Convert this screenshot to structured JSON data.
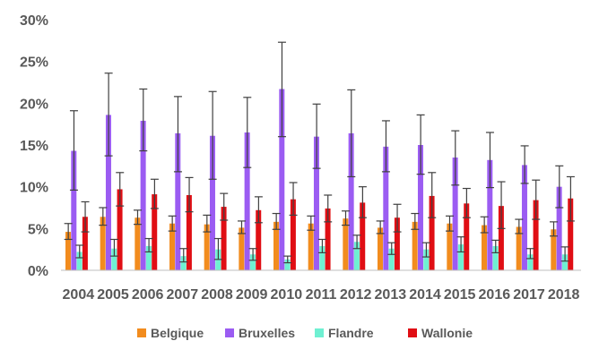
{
  "chart_data": {
    "type": "bar",
    "categories": [
      "2004",
      "2005",
      "2006",
      "2007",
      "2008",
      "2009",
      "2010",
      "2011",
      "2012",
      "2013",
      "2014",
      "2015",
      "2016",
      "2017",
      "2018"
    ],
    "ylim": [
      0,
      30
    ],
    "yticks": [
      "0%",
      "5%",
      "10%",
      "15%",
      "20%",
      "25%",
      "30%"
    ],
    "ytick_values": [
      0,
      5,
      10,
      15,
      20,
      25,
      30
    ],
    "grid": false,
    "legend_position": "bottom",
    "error_bars": true,
    "series": [
      {
        "name": "Belgique",
        "color": "#F28C1E",
        "values": [
          4.6,
          6.4,
          6.3,
          5.6,
          5.5,
          5.1,
          5.8,
          5.6,
          6.2,
          5.1,
          5.8,
          5.6,
          5.4,
          5.2,
          4.9
        ],
        "err_low": [
          3.7,
          5.4,
          5.5,
          4.7,
          4.6,
          4.4,
          4.9,
          4.8,
          5.4,
          4.4,
          4.9,
          4.7,
          4.5,
          4.4,
          4.1
        ],
        "err_high": [
          5.6,
          7.5,
          7.2,
          6.5,
          6.6,
          5.9,
          6.8,
          6.5,
          7.1,
          5.9,
          6.8,
          6.5,
          6.4,
          6.1,
          5.8
        ]
      },
      {
        "name": "Bruxelles",
        "color": "#9B5CF2",
        "values": [
          14.3,
          18.6,
          17.9,
          16.4,
          16.1,
          16.5,
          21.7,
          16.0,
          16.4,
          14.8,
          15.0,
          13.5,
          13.2,
          12.6,
          10.0
        ],
        "err_low": [
          9.6,
          13.7,
          14.3,
          11.8,
          10.9,
          12.3,
          16.0,
          12.2,
          11.2,
          11.8,
          11.5,
          10.2,
          9.9,
          10.4,
          7.5
        ],
        "err_high": [
          19.1,
          23.6,
          21.7,
          20.8,
          21.4,
          20.7,
          27.3,
          19.9,
          21.6,
          17.9,
          18.6,
          16.7,
          16.5,
          14.9,
          12.5
        ]
      },
      {
        "name": "Flandre",
        "color": "#6FF0D2",
        "values": [
          2.2,
          2.6,
          2.9,
          1.7,
          2.5,
          1.9,
          1.3,
          2.9,
          3.4,
          2.6,
          2.5,
          3.1,
          2.9,
          1.9,
          1.9
        ],
        "err_low": [
          1.5,
          1.7,
          2.2,
          1.0,
          1.3,
          1.2,
          0.9,
          2.1,
          2.6,
          1.9,
          1.6,
          2.2,
          2.1,
          1.4,
          1.1
        ],
        "err_high": [
          3.0,
          3.7,
          3.8,
          2.6,
          3.8,
          2.6,
          1.7,
          3.7,
          4.2,
          3.3,
          3.3,
          4.0,
          3.6,
          2.6,
          2.8
        ]
      },
      {
        "name": "Wallonie",
        "color": "#E00E14",
        "values": [
          6.4,
          9.7,
          9.1,
          9.0,
          7.6,
          7.2,
          8.5,
          7.4,
          8.1,
          6.3,
          8.9,
          8.0,
          7.7,
          8.4,
          8.6
        ],
        "err_low": [
          4.6,
          7.7,
          7.4,
          7.0,
          6.0,
          5.7,
          6.6,
          5.8,
          6.3,
          4.6,
          6.3,
          6.3,
          5.0,
          6.1,
          5.9
        ],
        "err_high": [
          8.2,
          11.7,
          10.9,
          11.1,
          9.2,
          8.8,
          10.5,
          9.0,
          10.0,
          7.9,
          11.7,
          9.8,
          10.6,
          10.8,
          11.2
        ]
      }
    ]
  }
}
